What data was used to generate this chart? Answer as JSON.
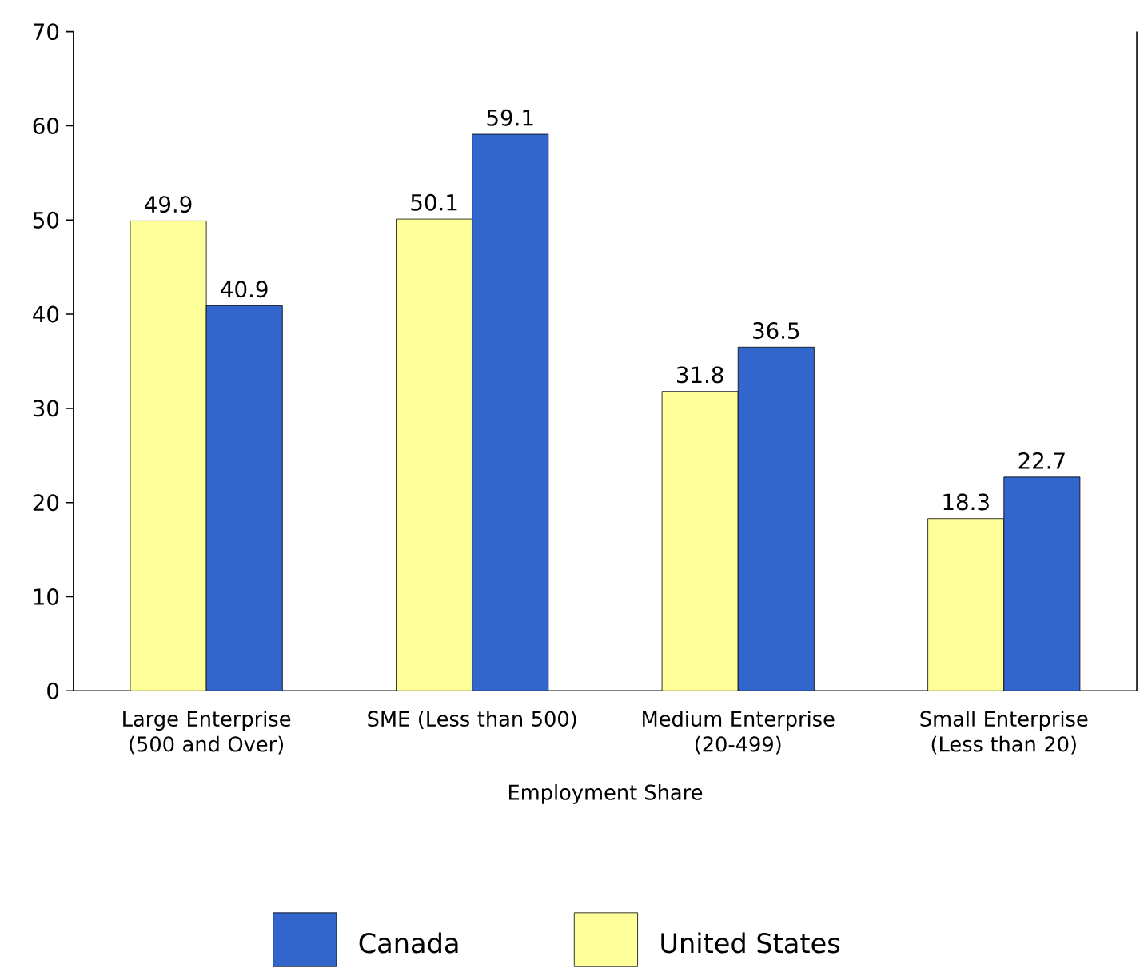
{
  "chart_data": {
    "type": "bar",
    "xlabel": "Employment Share",
    "categories": [
      "Large Enterprise (500 and Over)",
      "SME (Less than 500)",
      "Medium Enterprise (20-499)",
      "Small Enterprise (Less than 20)"
    ],
    "series": [
      {
        "name": "United States",
        "color": "#ffff99",
        "values": [
          49.9,
          50.1,
          31.8,
          18.3
        ]
      },
      {
        "name": "Canada",
        "color": "#3366cc",
        "values": [
          40.9,
          59.1,
          36.5,
          22.7
        ]
      }
    ],
    "ylim": [
      0,
      70
    ],
    "yticks": [
      0,
      10,
      20,
      30,
      40,
      50,
      60,
      70
    ],
    "data_labels": true,
    "legend": "bottom",
    "grid": false
  }
}
